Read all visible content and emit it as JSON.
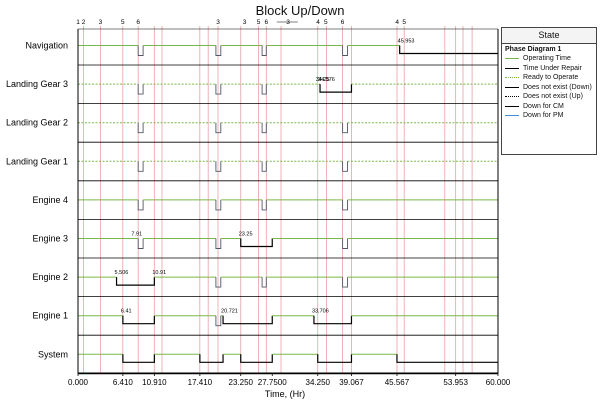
{
  "chart_data": {
    "type": "line",
    "title": "Block Up/Down",
    "xlabel": "Time, (Hr)",
    "xlim": [
      0,
      60
    ],
    "x_ticks": [
      "0.000",
      "6.410",
      "10.910",
      "17.410",
      "23.250",
      "27.7500",
      "34.250",
      "39.067",
      "45.567",
      "53.953",
      "60.000"
    ],
    "x_tick_values": [
      0,
      6.41,
      10.91,
      17.41,
      23.25,
      27.75,
      34.25,
      39.067,
      45.567,
      53.953,
      60
    ],
    "phase_markers": [
      {
        "label": "1",
        "x": 0
      },
      {
        "label": "2",
        "x": 0.8
      },
      {
        "label": "3",
        "x": 3.2
      },
      {
        "label": "5",
        "x": 6.4
      },
      {
        "label": "6",
        "x": 8.6
      },
      {
        "label": "3",
        "x": 20.0
      },
      {
        "label": "3",
        "x": 23.8
      },
      {
        "label": "5",
        "x": 25.8
      },
      {
        "label": "6",
        "x": 26.9
      },
      {
        "label": "3",
        "x": 30.0
      },
      {
        "label": "4",
        "x": 34.3
      },
      {
        "label": "5",
        "x": 35.4
      },
      {
        "label": "6",
        "x": 37.8
      },
      {
        "label": "4",
        "x": 45.6
      },
      {
        "label": "5",
        "x": 46.6
      }
    ],
    "phase_dividers": [
      0.8,
      3.2,
      6.4,
      8.6,
      10.9,
      12.0,
      17.4,
      18.6,
      20.0,
      23.25,
      25.8,
      26.9,
      29.0,
      34.25,
      35.5,
      37.8,
      39.07,
      45.57,
      46.6,
      52.4,
      53.95,
      55.0,
      56.3
    ],
    "short_outages": [
      {
        "start": 8.6,
        "end": 9.3
      },
      {
        "start": 19.7,
        "end": 20.4
      },
      {
        "start": 26.3,
        "end": 26.9
      },
      {
        "start": 37.8,
        "end": 38.5
      }
    ],
    "lane_categories": [
      "Navigation",
      "Landing Gear 3",
      "Landing Gear 2",
      "Landing Gear 1",
      "Engine 4",
      "Engine 3",
      "Engine 2",
      "Engine 1",
      "System"
    ],
    "series": [
      {
        "name": "Navigation",
        "style": "solid",
        "downtimes": [],
        "final_down": 45.953,
        "annotations": [
          {
            "label": "45.953",
            "x": 45.953
          }
        ]
      },
      {
        "name": "Landing Gear 3",
        "style": "dotted",
        "downtimes": [
          {
            "start": 34.576,
            "end": 39.067
          }
        ],
        "final_down": null,
        "annotations": [
          {
            "label": "34.25",
            "x": 34.25
          },
          {
            "label": "34.576",
            "x": 34.576
          }
        ]
      },
      {
        "name": "Landing Gear 2",
        "style": "dotted",
        "downtimes": [],
        "final_down": null,
        "annotations": []
      },
      {
        "name": "Landing Gear 1",
        "style": "dotted",
        "downtimes": [],
        "final_down": null,
        "annotations": []
      },
      {
        "name": "Engine 4",
        "style": "solid",
        "downtimes": [],
        "final_down": null,
        "annotations": []
      },
      {
        "name": "Engine 3",
        "style": "solid",
        "downtimes": [
          {
            "start": 23.25,
            "end": 27.75
          }
        ],
        "final_down": null,
        "annotations": [
          {
            "label": "7.91",
            "x": 7.91
          },
          {
            "label": "23.25",
            "x": 23.25
          }
        ]
      },
      {
        "name": "Engine 2",
        "style": "solid",
        "downtimes": [
          {
            "start": 5.506,
            "end": 10.91
          }
        ],
        "final_down": null,
        "annotations": [
          {
            "label": "5.506",
            "x": 5.506
          },
          {
            "label": "10.91",
            "x": 10.91
          }
        ]
      },
      {
        "name": "Engine 1",
        "style": "solid",
        "downtimes": [
          {
            "start": 6.41,
            "end": 10.91
          },
          {
            "start": 20.721,
            "end": 27.75
          },
          {
            "start": 33.706,
            "end": 39.067
          }
        ],
        "final_down": null,
        "annotations": [
          {
            "label": "6.41",
            "x": 6.41
          },
          {
            "label": "20.721",
            "x": 20.721
          },
          {
            "label": "33.706",
            "x": 33.706
          }
        ]
      },
      {
        "name": "System",
        "style": "solid",
        "downtimes": [
          {
            "start": 6.41,
            "end": 10.91
          },
          {
            "start": 17.41,
            "end": 20.721
          },
          {
            "start": 23.25,
            "end": 27.75
          },
          {
            "start": 34.25,
            "end": 39.067
          }
        ],
        "final_down": 45.567,
        "annotations": []
      }
    ],
    "grid": false,
    "legend_position": "top-right"
  },
  "legend": {
    "title": "State",
    "subtitle": "Phase Diagram 1",
    "items": [
      {
        "label": "Operating Time",
        "color": "#7ab648",
        "style": "solid"
      },
      {
        "label": "Time Under Repair",
        "color": "#000000",
        "style": "solid"
      },
      {
        "label": "Ready to Operate",
        "color": "#7ab648",
        "style": "dotted"
      },
      {
        "label": "Does not exist (Down)",
        "color": "#000000",
        "style": "solid"
      },
      {
        "label": "Does not exist (Up)",
        "color": "#000000",
        "style": "dotted"
      },
      {
        "label": "Down for CM",
        "color": "#000000",
        "style": "solid"
      },
      {
        "label": "Down for PM",
        "color": "#3a8fd6",
        "style": "solid"
      }
    ]
  },
  "colors": {
    "up": "#7ab648",
    "down": "#000000",
    "divider": "#e8a0a8",
    "axis": "#000000",
    "lane_line": "#000000"
  }
}
